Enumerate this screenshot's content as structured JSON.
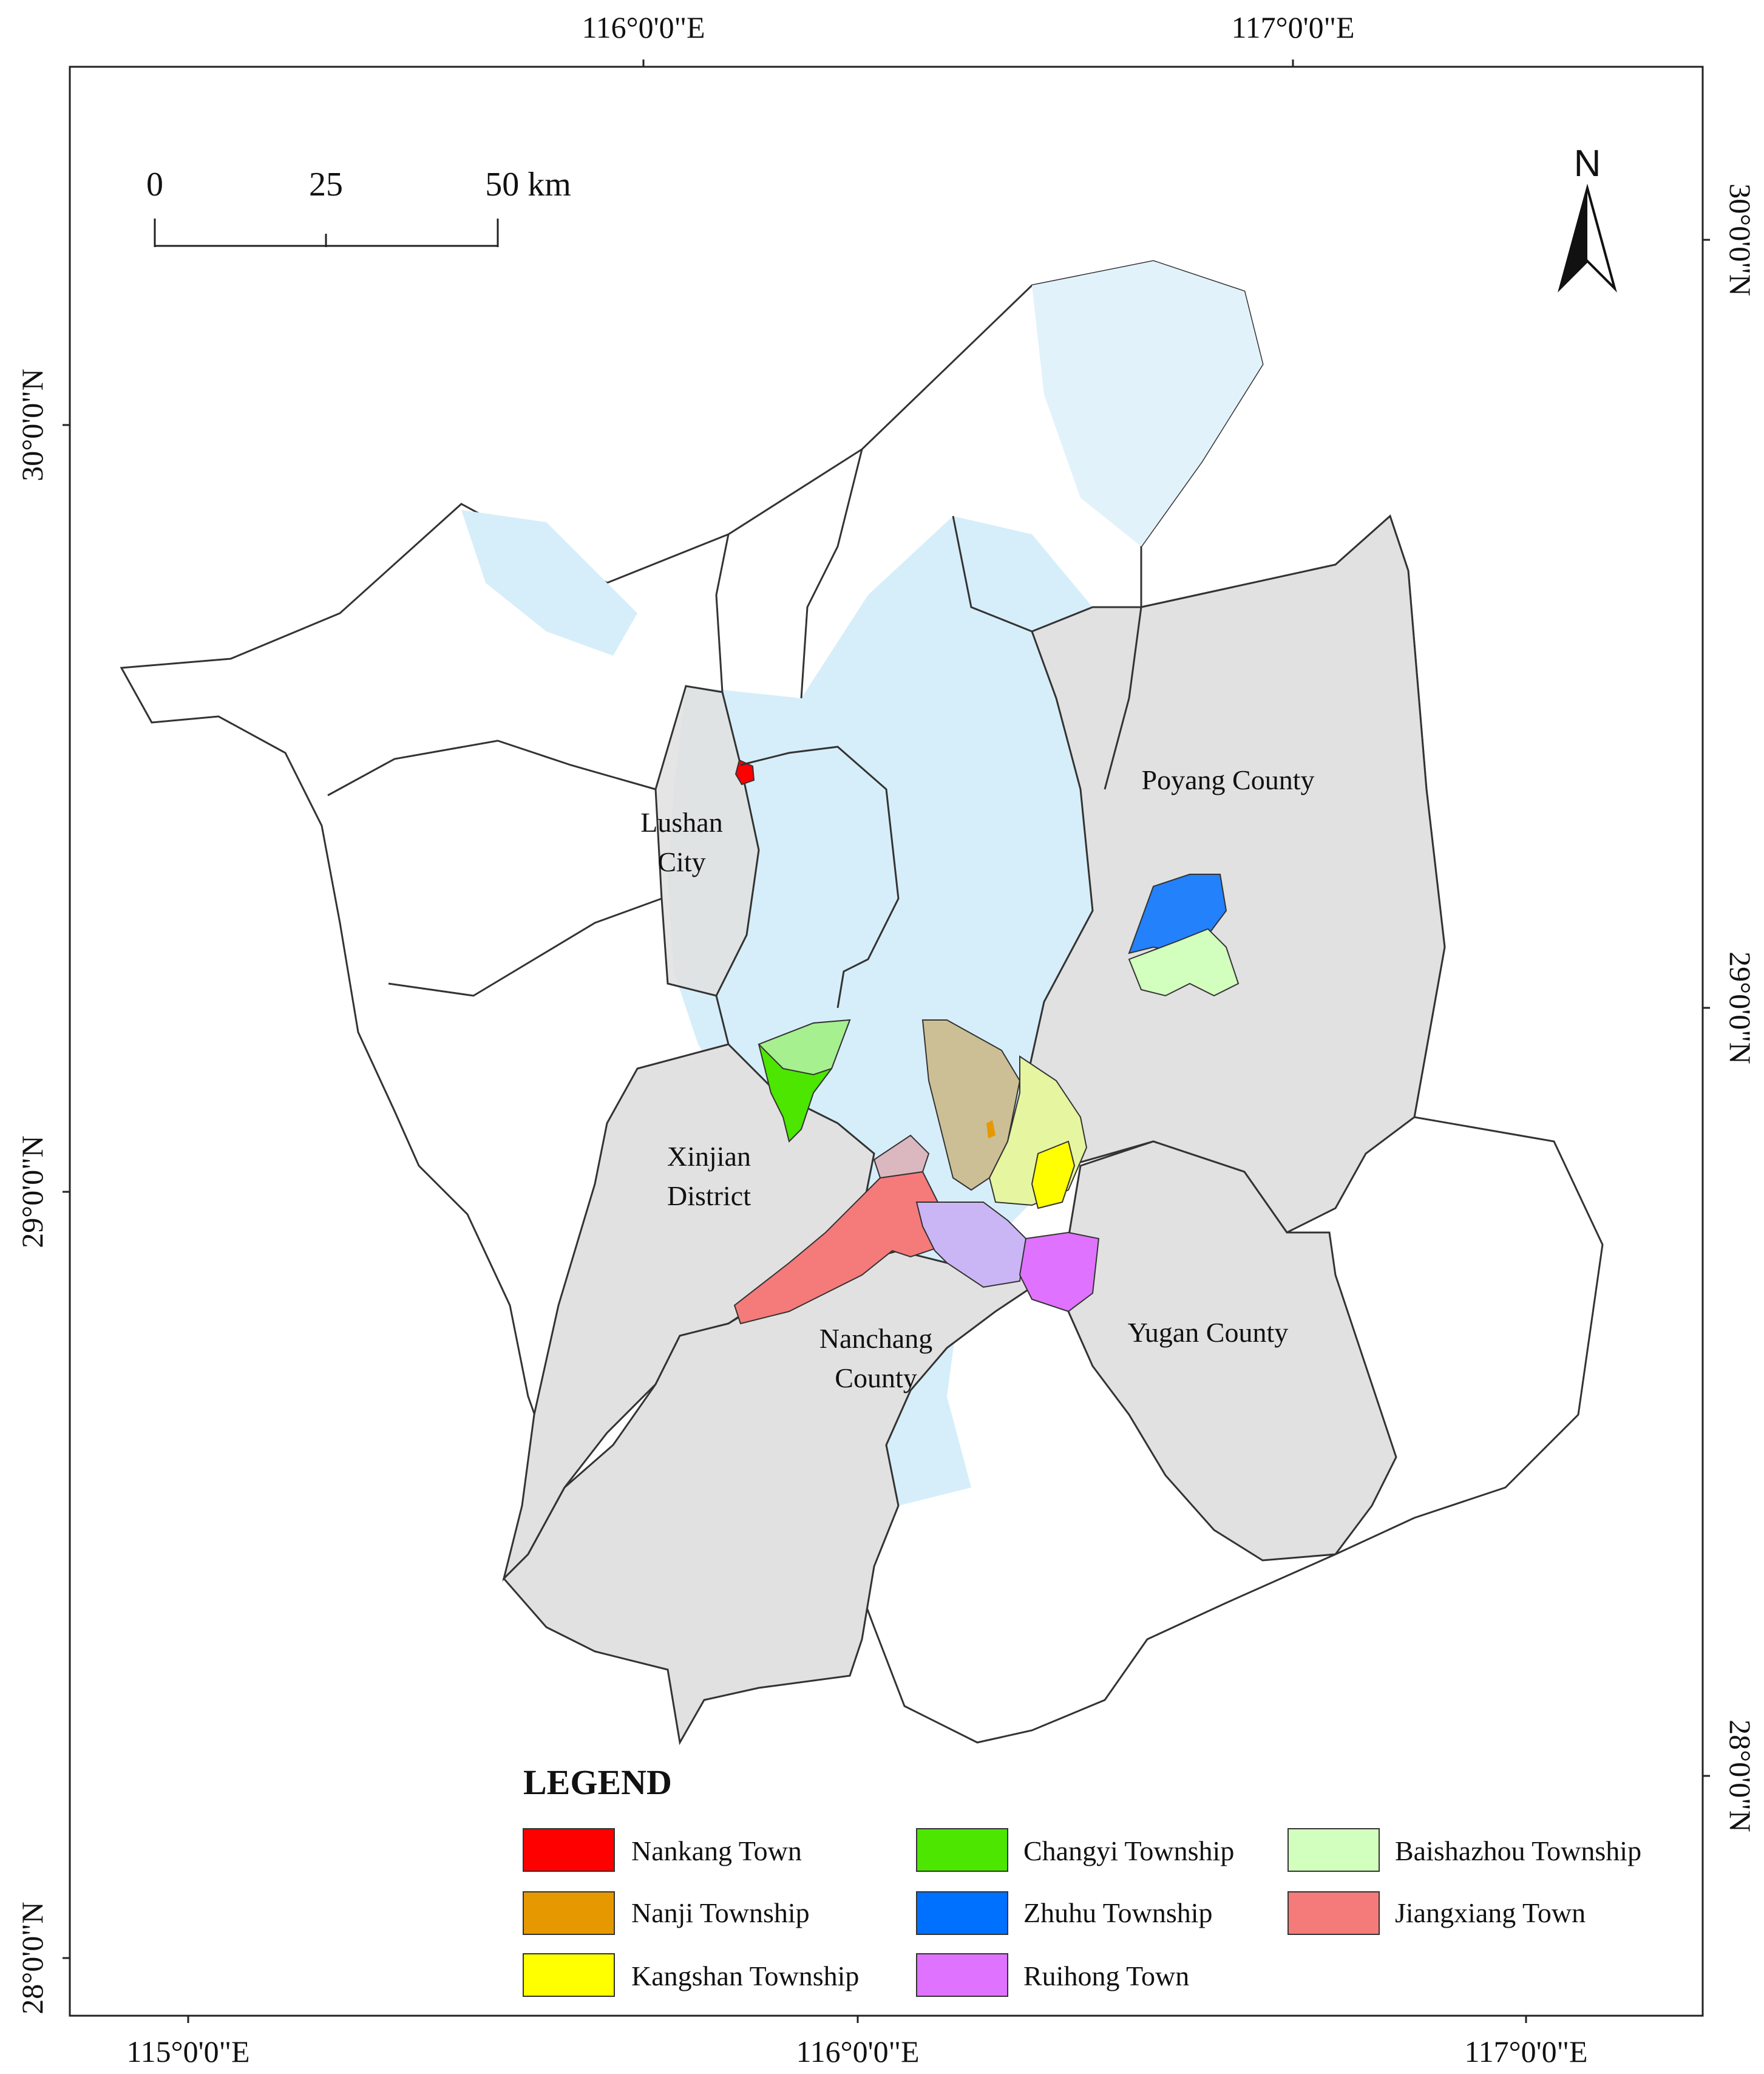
{
  "coordinates": {
    "top": [
      "116°0'0\"E",
      "117°0'0\"E"
    ],
    "bottom": [
      "115°0'0\"E",
      "116°0'0\"E",
      "117°0'0\"E"
    ],
    "left": [
      "30°0'0\"N",
      "29°0'0\"N",
      "28°0'0\"N"
    ],
    "right": [
      "30°0'0\"N",
      "29°0'0\"N",
      "28°0'0\"N"
    ]
  },
  "scale_bar": {
    "labels": [
      "0",
      "25",
      "50 km"
    ]
  },
  "north_arrow": {
    "label": "N"
  },
  "places": {
    "lushan_1": "Lushan",
    "lushan_2": "City",
    "poyang": "Poyang County",
    "xinjian_1": "Xinjian",
    "xinjian_2": "District",
    "nanchang_1": "Nanchang",
    "nanchang_2": "County",
    "yugan": "Yugan County"
  },
  "legend": {
    "title": "LEGEND",
    "items": [
      {
        "label": "Nankang Town",
        "color": "#ff0000"
      },
      {
        "label": "Nanji Township",
        "color": "#e69800"
      },
      {
        "label": "Kangshan Township",
        "color": "#ffff00"
      },
      {
        "label": "Changyi Township",
        "color": "#4ce600"
      },
      {
        "label": "Zhuhu Township",
        "color": "#0070ff"
      },
      {
        "label": "Ruihong Town",
        "color": "#df73ff"
      },
      {
        "label": "Baishazhou Township",
        "color": "#d3ffbe"
      },
      {
        "label": "Jiangxiang Town",
        "color": "#f57a7a"
      }
    ]
  },
  "colors": {
    "study_area": "#e1e1e1",
    "water": "#d6eef9",
    "boundary": "#333333"
  }
}
